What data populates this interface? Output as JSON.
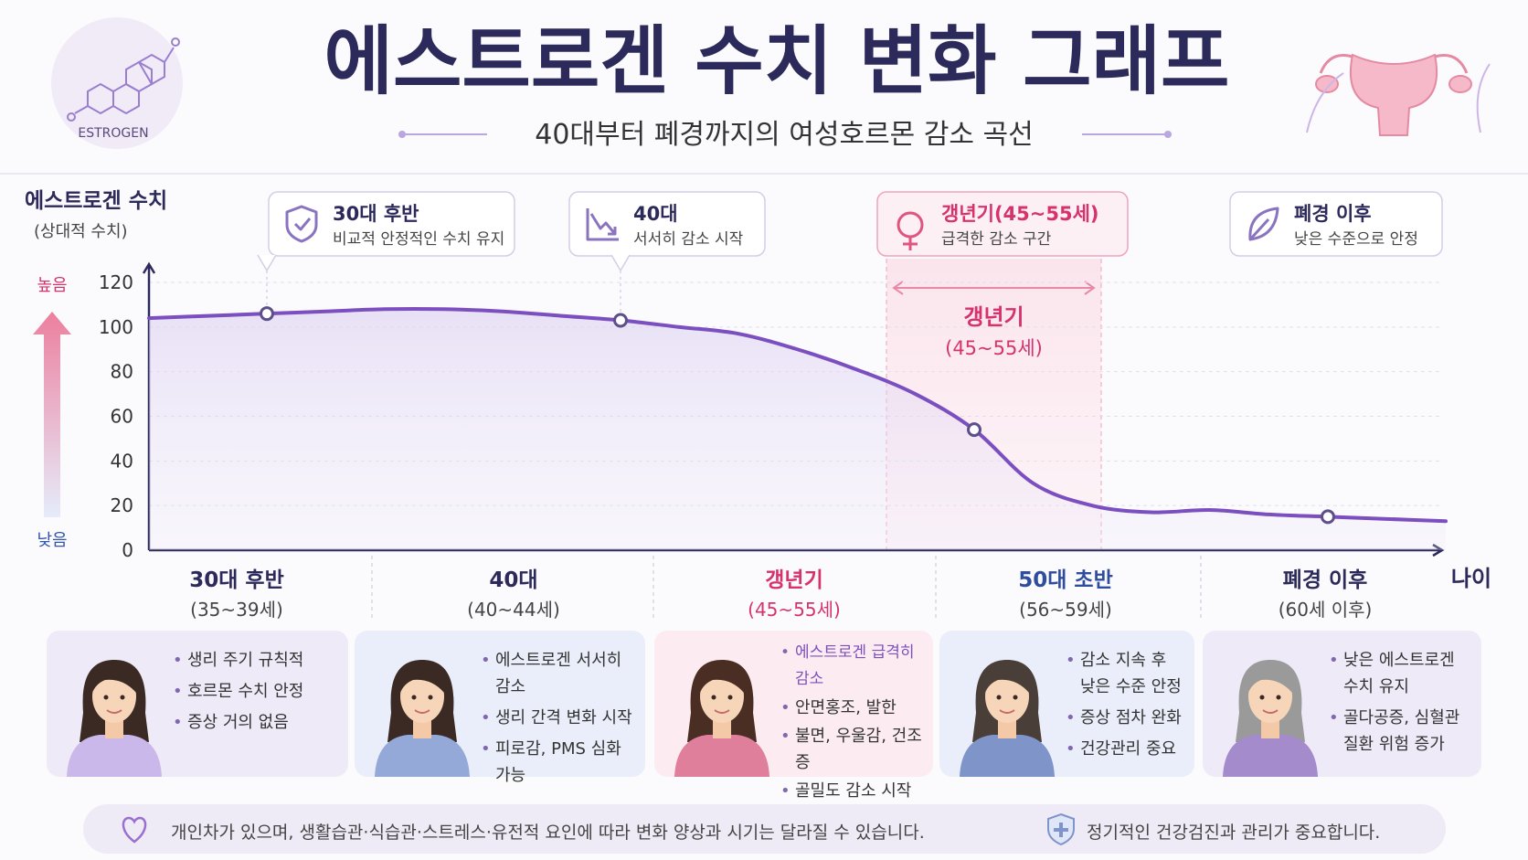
{
  "header": {
    "title": "에스트로겐 수치 변화 그래프",
    "subtitle": "40대부터 폐경까지의 여성호르몬 감소 곡선",
    "logo_label": "ESTROGEN"
  },
  "chart_data": {
    "type": "line",
    "y_label": "에스트로겐 수치",
    "y_sublabel": "(상대적 수치)",
    "high_label": "높음",
    "low_label": "낮음",
    "x_label": "나이",
    "ylim": [
      0,
      120
    ],
    "yticks": [
      0,
      20,
      40,
      60,
      80,
      100,
      120
    ],
    "grid": true,
    "categories": [
      null,
      null,
      null,
      null,
      null,
      null,
      null,
      null,
      null,
      null,
      null,
      null,
      null,
      null,
      null,
      null,
      null,
      null,
      null,
      null,
      null,
      null,
      null
    ],
    "series": [
      {
        "color": "#7b4fbf",
        "values": [
          104,
          105,
          106,
          107,
          108,
          108,
          107,
          105,
          103,
          100,
          97,
          90,
          81,
          70,
          54,
          30,
          20,
          17,
          18,
          16,
          15,
          14,
          13
        ]
      }
    ],
    "band_label": "갱년기",
    "band_sublabel": "(45~55세)"
  },
  "callouts": [
    {
      "title": "30대 후반",
      "text": "비교적 안정적인 수치 유지"
    },
    {
      "title": "40대",
      "text": "서서히 감소 시작"
    },
    {
      "title": "갱년기(45~55세)",
      "text": "급격한 감소 구간"
    },
    {
      "title": "폐경 이후",
      "text": "낮은 수준으로 안정"
    }
  ],
  "stages": [
    {
      "name": "30대 후반",
      "range": "(35~39세)",
      "bullets": [
        "생리 주기 규칙적",
        "호르몬 수치 안정",
        "증상 거의 없음"
      ]
    },
    {
      "name": "40대",
      "range": "(40~44세)",
      "bullets": [
        "에스트로겐 서서히 감소",
        "생리 간격 변화 시작",
        "피로감, PMS 심화 가능"
      ]
    },
    {
      "name": "갱년기",
      "range": "(45~55세)",
      "bullets": [
        "에스트로겐 급격히 감소",
        "안면홍조, 발한",
        "불면, 우울감, 건조증",
        "골밀도 감소 시작"
      ]
    },
    {
      "name": "50대 초반",
      "range": "(56~59세)",
      "bullets": [
        "감소 지속 후 낮은 수준 안정",
        "증상 점차 완화",
        "건강관리 중요"
      ]
    },
    {
      "name": "폐경 이후",
      "range": "(60세 이후)",
      "bullets": [
        "낮은 에스트로겐 수치 유지",
        "골다공증, 심혈관 질환 위험 증가"
      ]
    }
  ],
  "footer": {
    "note": "개인차가 있으며, 생활습관·식습관·스트레스·유전적 요인에 따라 변화 양상과 시기는 달라질 수 있습니다.",
    "tip": "정기적인 건강검진과 관리가 중요합니다."
  }
}
